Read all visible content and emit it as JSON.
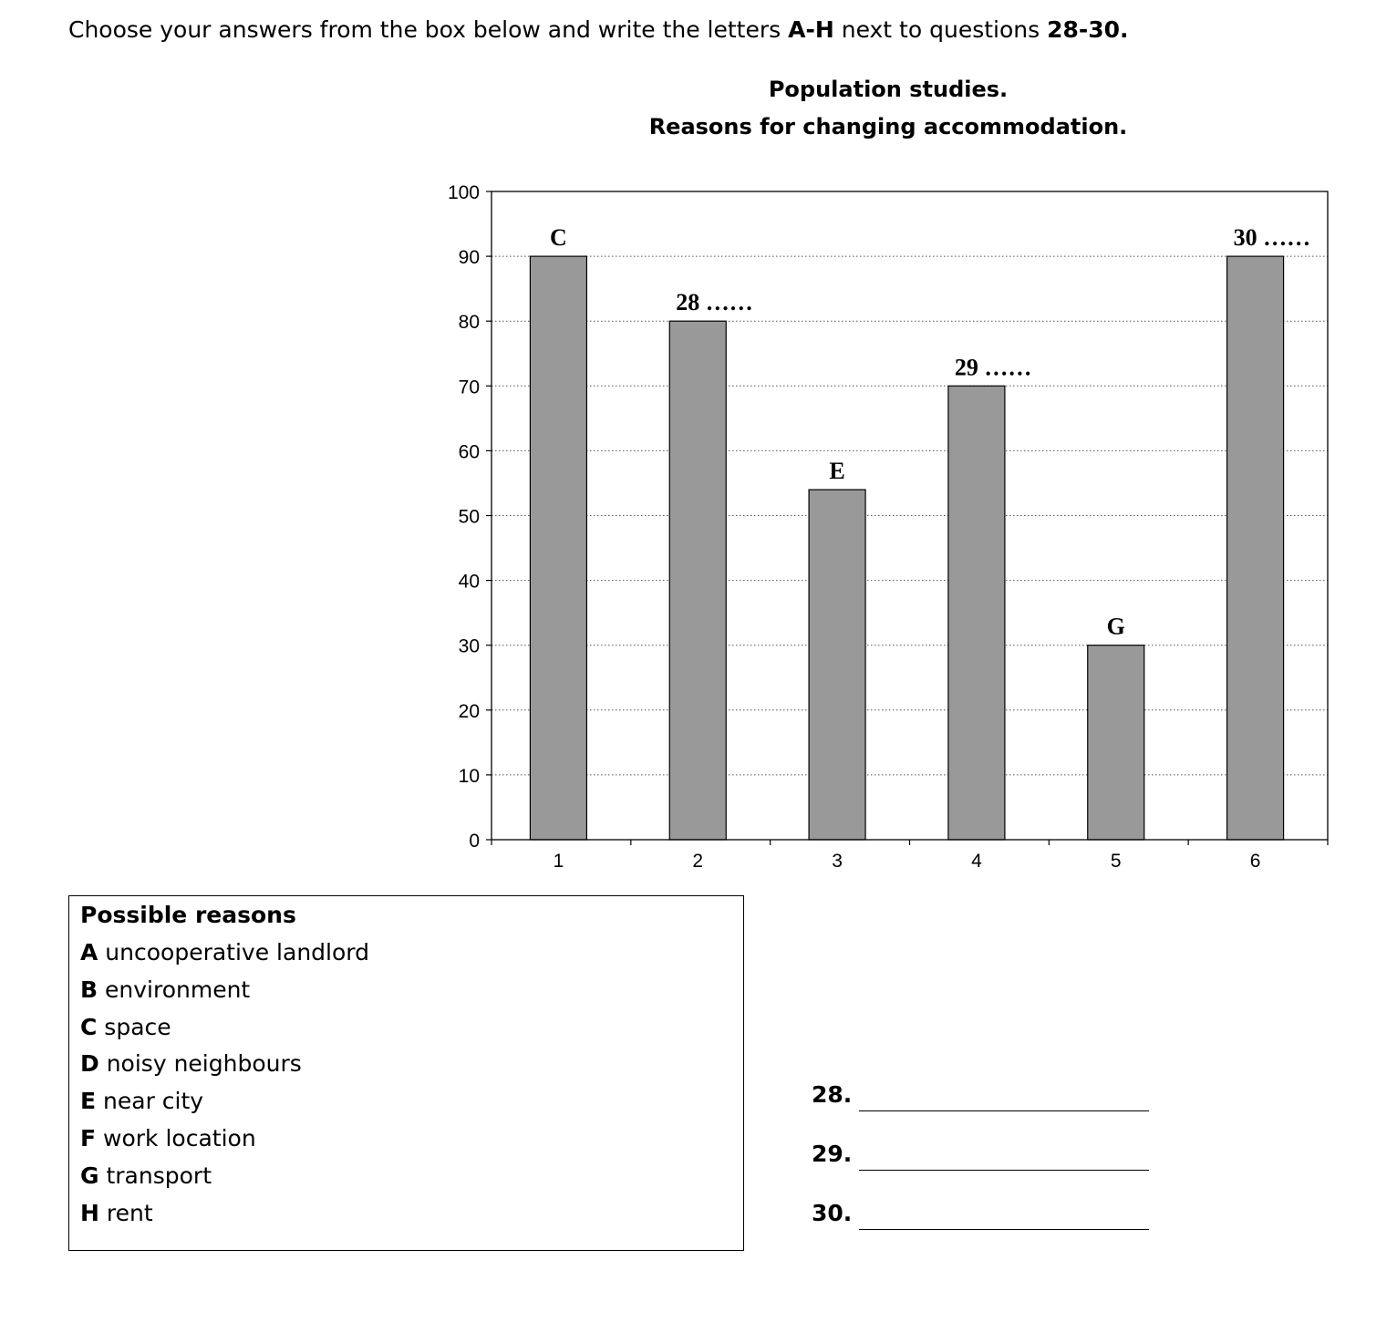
{
  "instructions": {
    "prefix": "Choose your answers from the box below and write the letters ",
    "letters": "A-H",
    "middle": " next to questions ",
    "questions": "28-30."
  },
  "chart_data": {
    "type": "bar",
    "title": "Population studies.",
    "subtitle": "Reasons for changing accommodation.",
    "categories": [
      "1",
      "2",
      "3",
      "4",
      "5",
      "6"
    ],
    "values": [
      90,
      80,
      54,
      70,
      30,
      90
    ],
    "bar_labels": [
      "C",
      "28 ……",
      "E",
      "29 ……",
      "G",
      "30 ……"
    ],
    "ylim": [
      0,
      100
    ],
    "yticks": [
      0,
      10,
      20,
      30,
      40,
      50,
      60,
      70,
      80,
      90,
      100
    ],
    "grid": true,
    "bar_color": "#999999",
    "xlabel": "",
    "ylabel": ""
  },
  "reasons": {
    "heading": "Possible reasons",
    "items": [
      {
        "letter": "A",
        "text": " uncooperative landlord"
      },
      {
        "letter": "B",
        "text": " environment"
      },
      {
        "letter": "C",
        "text": " space"
      },
      {
        "letter": "D",
        "text": " noisy neighbours"
      },
      {
        "letter": "E",
        "text": " near city"
      },
      {
        "letter": "F",
        "text": " work location"
      },
      {
        "letter": "G",
        "text": " transport"
      },
      {
        "letter": "H",
        "text": " rent"
      }
    ]
  },
  "answers": [
    {
      "number": "28.",
      "value": ""
    },
    {
      "number": "29.",
      "value": ""
    },
    {
      "number": "30.",
      "value": ""
    }
  ]
}
